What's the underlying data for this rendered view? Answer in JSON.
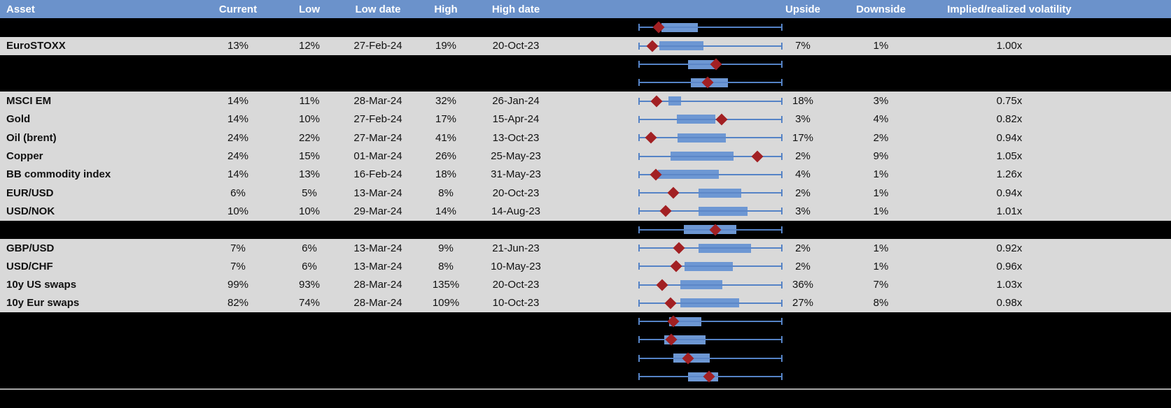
{
  "colors": {
    "header_bg": "#6b92cb",
    "header_text": "#ffffff",
    "row_bg_gray": "#d9d9d9",
    "row_bg_black": "#000000",
    "whisker_blue": "#5583c6",
    "box_blue": "#6d97d3",
    "marker_red": "#a22023",
    "footer_line_gray": "#a6a6a6"
  },
  "plot_meta": {
    "description": "Each row shows a horizontal box-whisker plot: whiskers span the full 1y range (0-100), blue box = interquartile range, red diamond = current level. Values are percent of plot width.",
    "whisker_low_pct": 0,
    "whisker_high_pct": 100
  },
  "table": {
    "columns": {
      "asset": "Asset",
      "current": "Current",
      "low": "Low",
      "low_date": "Low date",
      "high": "High",
      "high_date": "High date",
      "upside": "Upside",
      "downside": "Downside",
      "vol": "Implied/realized volatility"
    },
    "rows": [
      {
        "type": "spacer",
        "box": {
          "lo": 0,
          "q1": 15.6,
          "q3": 41.1,
          "hi": 100,
          "marker": 13.7
        }
      },
      {
        "type": "data",
        "asset": "EuroSTOXX",
        "current": "13%",
        "low": "12%",
        "low_date": "27-Feb-24",
        "high": "19%",
        "high_date": "20-Oct-23",
        "upside": "7%",
        "downside": "1%",
        "vol": "1.00x",
        "box": {
          "lo": 0,
          "q1": 14.2,
          "q3": 45.0,
          "hi": 100,
          "marker": 9.3
        }
      },
      {
        "type": "spacer",
        "box": {
          "lo": 0,
          "q1": 34.2,
          "q3": 54.8,
          "hi": 100,
          "marker": 53.8
        }
      },
      {
        "type": "spacer",
        "box": {
          "lo": 0,
          "q1": 36.2,
          "q3": 62.1,
          "hi": 100,
          "marker": 47.9
        }
      },
      {
        "type": "data",
        "asset": "MSCI EM",
        "current": "14%",
        "low": "11%",
        "low_date": "28-Mar-24",
        "high": "32%",
        "high_date": "26-Jan-24",
        "upside": "18%",
        "downside": "3%",
        "vol": "0.75x",
        "box": {
          "lo": 0,
          "q1": 20.5,
          "q3": 29.3,
          "hi": 100,
          "marker": 12.2
        }
      },
      {
        "type": "data",
        "asset": "Gold",
        "current": "14%",
        "low": "10%",
        "low_date": "27-Feb-24",
        "high": "17%",
        "high_date": "15-Apr-24",
        "upside": "3%",
        "downside": "4%",
        "vol": "0.82x",
        "box": {
          "lo": 0,
          "q1": 26.4,
          "q3": 53.3,
          "hi": 100,
          "marker": 57.7
        }
      },
      {
        "type": "data",
        "asset": "Oil (brent)",
        "current": "24%",
        "low": "22%",
        "low_date": "27-Mar-24",
        "high": "41%",
        "high_date": "13-Oct-23",
        "upside": "17%",
        "downside": "2%",
        "vol": "0.94x",
        "box": {
          "lo": 0,
          "q1": 26.9,
          "q3": 60.6,
          "hi": 100,
          "marker": 8.3
        }
      },
      {
        "type": "data",
        "asset": "Copper",
        "current": "24%",
        "low": "15%",
        "low_date": "01-Mar-24",
        "high": "26%",
        "high_date": "25-May-23",
        "upside": "2%",
        "downside": "9%",
        "vol": "1.05x",
        "box": {
          "lo": 0,
          "q1": 22.0,
          "q3": 66.0,
          "hi": 100,
          "marker": 82.6
        }
      },
      {
        "type": "data",
        "asset": "BB commodity index",
        "current": "14%",
        "low": "13%",
        "low_date": "16-Feb-24",
        "high": "18%",
        "high_date": "31-May-23",
        "upside": "4%",
        "downside": "1%",
        "vol": "1.26x",
        "box": {
          "lo": 0,
          "q1": 13.2,
          "q3": 55.7,
          "hi": 100,
          "marker": 11.7
        }
      },
      {
        "type": "data",
        "asset": "EUR/USD",
        "current": "6%",
        "low": "5%",
        "low_date": "13-Mar-24",
        "high": "8%",
        "high_date": "20-Oct-23",
        "upside": "2%",
        "downside": "1%",
        "vol": "0.94x",
        "box": {
          "lo": 0,
          "q1": 41.6,
          "q3": 71.4,
          "hi": 100,
          "marker": 24.0
        }
      },
      {
        "type": "data",
        "asset": "USD/NOK",
        "current": "10%",
        "low": "10%",
        "low_date": "29-Mar-24",
        "high": "14%",
        "high_date": "14-Aug-23",
        "upside": "3%",
        "downside": "1%",
        "vol": "1.01x",
        "box": {
          "lo": 0,
          "q1": 41.6,
          "q3": 75.8,
          "hi": 100,
          "marker": 18.6
        }
      },
      {
        "type": "spacer",
        "box": {
          "lo": 0,
          "q1": 31.3,
          "q3": 68.0,
          "hi": 100,
          "marker": 53.3
        }
      },
      {
        "type": "data",
        "asset": "GBP/USD",
        "current": "7%",
        "low": "6%",
        "low_date": "13-Mar-24",
        "high": "9%",
        "high_date": "21-Jun-23",
        "upside": "2%",
        "downside": "1%",
        "vol": "0.92x",
        "box": {
          "lo": 0,
          "q1": 41.6,
          "q3": 78.2,
          "hi": 100,
          "marker": 27.9
        }
      },
      {
        "type": "data",
        "asset": "USD/CHF",
        "current": "7%",
        "low": "6%",
        "low_date": "13-Mar-24",
        "high": "8%",
        "high_date": "10-May-23",
        "upside": "2%",
        "downside": "1%",
        "vol": "0.96x",
        "box": {
          "lo": 0,
          "q1": 31.8,
          "q3": 65.5,
          "hi": 100,
          "marker": 25.9
        }
      },
      {
        "type": "data",
        "asset": "10y US swaps",
        "current": "99%",
        "low": "93%",
        "low_date": "28-Mar-24",
        "high": "135%",
        "high_date": "20-Oct-23",
        "upside": "36%",
        "downside": "7%",
        "vol": "1.03x",
        "box": {
          "lo": 0,
          "q1": 28.9,
          "q3": 58.2,
          "hi": 100,
          "marker": 16.1
        }
      },
      {
        "type": "data",
        "asset": "10y Eur swaps",
        "current": "82%",
        "low": "74%",
        "low_date": "28-Mar-24",
        "high": "109%",
        "high_date": "10-Oct-23",
        "upside": "27%",
        "downside": "8%",
        "vol": "0.98x",
        "box": {
          "lo": 0,
          "q1": 28.9,
          "q3": 69.9,
          "hi": 100,
          "marker": 22.0
        }
      },
      {
        "type": "spacer",
        "box": {
          "lo": 0,
          "q1": 21.0,
          "q3": 43.5,
          "hi": 100,
          "marker": 24.0
        }
      },
      {
        "type": "spacer",
        "box": {
          "lo": 0,
          "q1": 17.6,
          "q3": 46.5,
          "hi": 100,
          "marker": 22.5
        }
      },
      {
        "type": "spacer",
        "box": {
          "lo": 0,
          "q1": 24.0,
          "q3": 49.4,
          "hi": 100,
          "marker": 34.2
        }
      },
      {
        "type": "spacer",
        "box": {
          "lo": 0,
          "q1": 34.2,
          "q3": 55.3,
          "hi": 100,
          "marker": 48.9
        }
      }
    ]
  }
}
